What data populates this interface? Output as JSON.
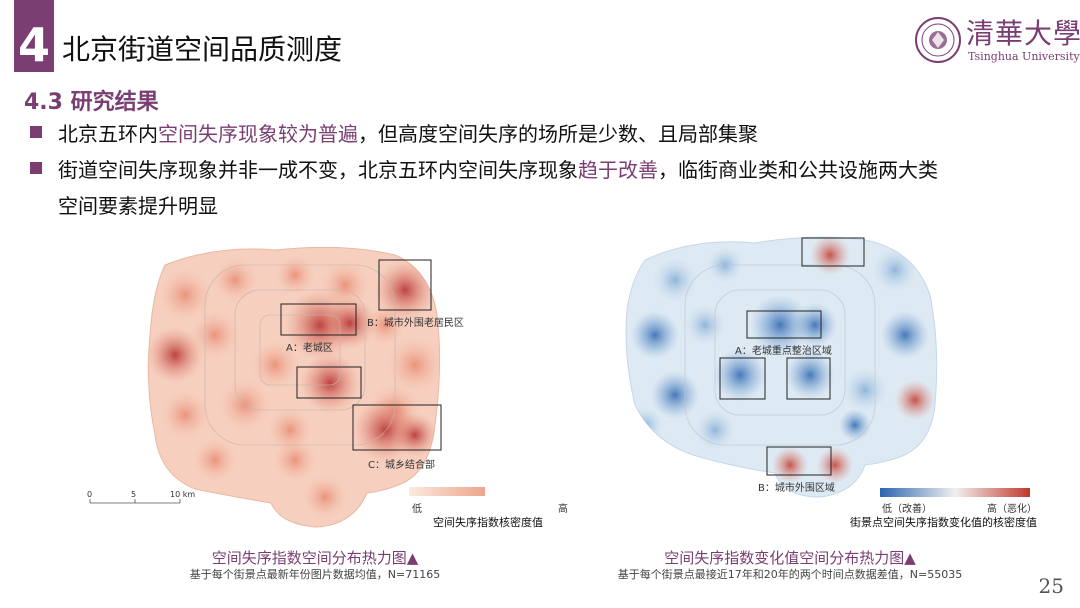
{
  "header": {
    "section_number": "4",
    "title": "北京街道空间品质测度",
    "subtitle": "4.3 研究结果",
    "logo_text": "清華大學",
    "logo_subtext": "Tsinghua University"
  },
  "bullets": [
    {
      "parts": [
        "北京五环内",
        "空间失序现象较为普遍",
        "，但高度空间失序的场所是少数、且局部集聚"
      ]
    },
    {
      "parts": [
        "街道空间失序现象并非一成不变，北京五环内空间失序现象",
        "趋于改善",
        "，临街商业类和公共设施两大类"
      ],
      "continuation": "空间要素提升明显"
    }
  ],
  "left_map": {
    "labels": {
      "a": "A：老城区",
      "b": "B：城市外围老居民区",
      "c": "C：城乡结合部"
    },
    "scale": {
      "zero": "0",
      "five": "5",
      "ten": "10 km"
    },
    "legend": {
      "low": "低",
      "high": "高",
      "title": "空间失序指数核密度值"
    },
    "caption": "空间失序指数空间分布热力图▲",
    "note": "基于每个街景点最新年份图片数据均值，N=71165",
    "colors": {
      "low": "#fbeae0",
      "mid": "#eea58d",
      "high": "#b3292a"
    }
  },
  "right_map": {
    "labels": {
      "a": "A：老城重点整治区域",
      "b": "B：城市外围区域"
    },
    "legend": {
      "low": "低（改善）",
      "high": "高（恶化）",
      "title": "街景点空间失序指数变化值的核密度值"
    },
    "caption": "空间失序指数变化值空间分布热力图▲",
    "note": "基于每个街景点最接近17年和20年的两个时间点数据差值，N=55035",
    "colors": {
      "low": "#2b65b0",
      "mid": "#dde9f3",
      "high": "#c0392b"
    }
  },
  "page_number": "25",
  "accent_color": "#7a3e72"
}
